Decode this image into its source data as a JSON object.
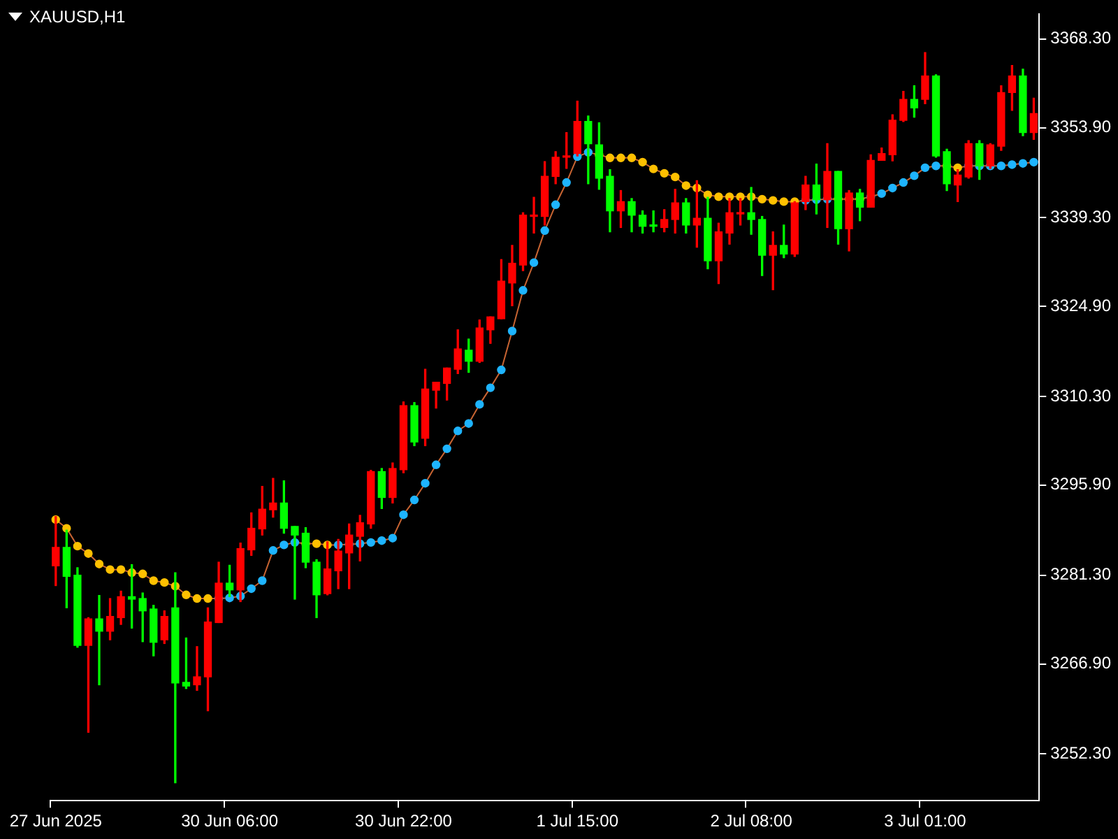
{
  "chart_data": {
    "type": "candlestick",
    "title": "XAUUSD,H1",
    "categories": [
      "27 Jun 2025",
      null,
      null,
      null,
      null,
      null,
      null,
      null,
      null,
      null,
      null,
      null,
      null,
      null,
      null,
      null,
      "30 Jun 06:00",
      null,
      null,
      null,
      null,
      null,
      null,
      null,
      null,
      null,
      null,
      null,
      null,
      null,
      null,
      null,
      "30 Jun 22:00",
      null,
      null,
      null,
      null,
      null,
      null,
      null,
      null,
      null,
      null,
      null,
      null,
      null,
      null,
      null,
      "1 Jul 15:00",
      null,
      null,
      null,
      null,
      null,
      null,
      null,
      null,
      null,
      null,
      null,
      null,
      null,
      null,
      null,
      "2 Jul 08:00",
      null,
      null,
      null,
      null,
      null,
      null,
      null,
      null,
      null,
      null,
      null,
      null,
      null,
      null,
      null,
      "3 Jul 01:00",
      null,
      null,
      null,
      null,
      null,
      null,
      null,
      null,
      null,
      null
    ],
    "ohlc": [
      [
        3282.8,
        3290.8,
        3279.6,
        3285.8
      ],
      [
        3285.8,
        3288.6,
        3276.0,
        3281.1
      ],
      [
        3281.3,
        3282.5,
        3269.6,
        3269.9
      ],
      [
        3269.9,
        3274.4,
        3255.8,
        3274.2
      ],
      [
        3274.2,
        3278.0,
        3263.5,
        3272.2
      ],
      [
        3272.2,
        3277.5,
        3270.8,
        3274.6
      ],
      [
        3274.4,
        3278.7,
        3273.3,
        3277.8
      ],
      [
        3277.8,
        3283.0,
        3272.7,
        3277.4
      ],
      [
        3277.5,
        3278.4,
        3270.5,
        3275.5
      ],
      [
        3275.8,
        3276.4,
        3268.2,
        3270.4
      ],
      [
        3270.8,
        3275.5,
        3270.2,
        3274.6
      ],
      [
        3276.0,
        3281.7,
        3247.6,
        3263.8
      ],
      [
        3263.9,
        3271.1,
        3262.9,
        3263.3
      ],
      [
        3263.5,
        3269.7,
        3262.6,
        3264.8
      ],
      [
        3264.8,
        3276.0,
        3259.3,
        3273.7
      ],
      [
        3273.6,
        3283.4,
        3273.6,
        3280.0
      ],
      [
        3280.0,
        3282.9,
        3277.8,
        3278.9
      ],
      [
        3278.9,
        3286.5,
        3277.0,
        3285.6
      ],
      [
        3285.4,
        3291.4,
        3284.5,
        3288.9
      ],
      [
        3288.8,
        3295.7,
        3287.8,
        3292.0
      ],
      [
        3291.9,
        3297.0,
        3290.7,
        3293.0
      ],
      [
        3293.0,
        3296.6,
        3288.1,
        3288.9
      ],
      [
        3289.2,
        3289.2,
        3277.4,
        3287.8
      ],
      [
        3288.1,
        3289.0,
        3282.5,
        3283.4
      ],
      [
        3283.4,
        3283.8,
        3274.4,
        3278.1
      ],
      [
        3278.3,
        3286.7,
        3278.1,
        3282.3
      ],
      [
        3282.0,
        3287.1,
        3279.1,
        3285.2
      ],
      [
        3284.9,
        3289.6,
        3279.1,
        3287.8
      ],
      [
        3287.6,
        3291.0,
        3283.6,
        3289.8
      ],
      [
        3289.6,
        3298.3,
        3288.9,
        3298.1
      ],
      [
        3298.1,
        3298.6,
        3292.1,
        3293.9
      ],
      [
        3293.9,
        3299.5,
        3293.0,
        3298.6
      ],
      [
        3298.4,
        3309.4,
        3297.9,
        3308.8
      ],
      [
        3308.8,
        3309.3,
        3302.3,
        3302.9
      ],
      [
        3303.5,
        3314.7,
        3302.3,
        3311.5
      ],
      [
        3311.3,
        3312.6,
        3308.4,
        3312.6
      ],
      [
        3312.4,
        3314.9,
        3309.7,
        3314.9
      ],
      [
        3314.7,
        3321.1,
        3314.0,
        3318.0
      ],
      [
        3317.8,
        3319.6,
        3314.2,
        3316.0
      ],
      [
        3316.0,
        3322.7,
        3315.8,
        3321.4
      ],
      [
        3321.1,
        3323.2,
        3318.9,
        3323.2
      ],
      [
        3322.9,
        3332.5,
        3322.9,
        3329.0
      ],
      [
        3328.7,
        3334.8,
        3325.0,
        3331.9
      ],
      [
        3331.6,
        3340.1,
        3330.7,
        3339.7
      ],
      [
        3339.5,
        3342.6,
        3336.8,
        3339.7
      ],
      [
        3339.5,
        3348.4,
        3338.1,
        3346.0
      ],
      [
        3346.0,
        3350.0,
        3344.8,
        3349.1
      ],
      [
        3349.1,
        3353.1,
        3347.3,
        3349.3
      ],
      [
        3349.7,
        3358.2,
        3349.3,
        3354.9
      ],
      [
        3354.9,
        3355.8,
        3344.8,
        3351.3
      ],
      [
        3351.1,
        3354.7,
        3343.9,
        3345.7
      ],
      [
        3346.0,
        3347.1,
        3337.0,
        3340.4
      ],
      [
        3340.4,
        3343.7,
        3337.7,
        3341.9
      ],
      [
        3341.9,
        3342.4,
        3337.0,
        3339.7
      ],
      [
        3339.7,
        3340.4,
        3336.8,
        3337.9
      ],
      [
        3338.1,
        3340.4,
        3337.0,
        3337.9
      ],
      [
        3337.7,
        3340.6,
        3337.0,
        3339.0
      ],
      [
        3339.0,
        3343.9,
        3336.8,
        3341.7
      ],
      [
        3341.7,
        3342.4,
        3336.8,
        3338.1
      ],
      [
        3338.1,
        3345.3,
        3334.5,
        3339.2
      ],
      [
        3339.2,
        3342.6,
        3331.0,
        3332.3
      ],
      [
        3332.3,
        3338.4,
        3328.6,
        3337.0
      ],
      [
        3336.8,
        3342.4,
        3335.0,
        3340.1
      ],
      [
        3339.9,
        3342.4,
        3338.1,
        3340.1
      ],
      [
        3340.1,
        3344.2,
        3336.6,
        3339.0
      ],
      [
        3339.0,
        3339.5,
        3329.9,
        3333.2
      ],
      [
        3333.2,
        3337.0,
        3327.6,
        3334.8
      ],
      [
        3334.8,
        3338.1,
        3332.8,
        3333.4
      ],
      [
        3333.4,
        3341.9,
        3333.0,
        3341.7
      ],
      [
        3341.9,
        3346.0,
        3340.6,
        3344.6
      ],
      [
        3344.6,
        3348.0,
        3339.9,
        3342.2
      ],
      [
        3342.2,
        3351.3,
        3337.7,
        3346.8
      ],
      [
        3346.8,
        3346.8,
        3335.0,
        3337.5
      ],
      [
        3337.5,
        3343.7,
        3333.9,
        3343.3
      ],
      [
        3343.3,
        3343.9,
        3338.8,
        3341.0
      ],
      [
        3341.0,
        3349.5,
        3341.0,
        3348.6
      ],
      [
        3348.6,
        3350.6,
        3348.6,
        3349.7
      ],
      [
        3349.5,
        3356.0,
        3348.5,
        3355.1
      ],
      [
        3355.1,
        3359.8,
        3354.9,
        3358.5
      ],
      [
        3358.5,
        3360.7,
        3355.6,
        3357.1
      ],
      [
        3358.5,
        3366.1,
        3357.8,
        3362.3
      ],
      [
        3362.3,
        3362.5,
        3349.1,
        3349.3
      ],
      [
        3350.0,
        3350.4,
        3343.7,
        3344.8
      ],
      [
        3344.6,
        3347.1,
        3341.9,
        3346.2
      ],
      [
        3345.9,
        3351.8,
        3345.7,
        3351.3
      ],
      [
        3351.3,
        3351.8,
        3345.5,
        3347.7
      ],
      [
        3347.7,
        3351.3,
        3347.3,
        3351.1
      ],
      [
        3350.9,
        3360.7,
        3350.2,
        3359.6
      ],
      [
        3359.6,
        3364.0,
        3356.7,
        3362.3
      ],
      [
        3362.3,
        3363.4,
        3352.6,
        3353.1
      ],
      [
        3353.1,
        3358.7,
        3352.0,
        3356.2
      ]
    ],
    "colors": [
      "#ff0000",
      "#00ff00",
      "#00ff00",
      "#ff0000",
      "#00ff00",
      "#ff0000",
      "#ff0000",
      "#00ff00",
      "#00ff00",
      "#00ff00",
      "#ff0000",
      "#00ff00",
      "#00ff00",
      "#ff0000",
      "#ff0000",
      "#ff0000",
      "#00ff00",
      "#ff0000",
      "#ff0000",
      "#ff0000",
      "#ff0000",
      "#00ff00",
      "#00ff00",
      "#00ff00",
      "#00ff00",
      "#ff0000",
      "#ff0000",
      "#ff0000",
      "#ff0000",
      "#ff0000",
      "#00ff00",
      "#ff0000",
      "#ff0000",
      "#00ff00",
      "#ff0000",
      "#ff0000",
      "#ff0000",
      "#ff0000",
      "#00ff00",
      "#ff0000",
      "#ff0000",
      "#ff0000",
      "#ff0000",
      "#ff0000",
      "#ff0000",
      "#ff0000",
      "#ff0000",
      "#ff0000",
      "#ff0000",
      "#00ff00",
      "#00ff00",
      "#00ff00",
      "#ff0000",
      "#00ff00",
      "#00ff00",
      "#00ff00",
      "#ff0000",
      "#ff0000",
      "#00ff00",
      "#ff0000",
      "#00ff00",
      "#ff0000",
      "#ff0000",
      "#ff0000",
      "#00ff00",
      "#00ff00",
      "#ff0000",
      "#00ff00",
      "#ff0000",
      "#ff0000",
      "#00ff00",
      "#ff0000",
      "#00ff00",
      "#ff0000",
      "#00ff00",
      "#ff0000",
      "#ff0000",
      "#ff0000",
      "#ff0000",
      "#00ff00",
      "#ff0000",
      "#00ff00",
      "#00ff00",
      "#ff0000",
      "#ff0000",
      "#00ff00",
      "#ff0000",
      "#ff0000",
      "#ff0000",
      "#00ff00",
      "#ff0000"
    ],
    "series": [
      {
        "type": "line",
        "color": "#c86432",
        "marker": "circle",
        "colors": [
          "#ffc000",
          "#ffc000",
          "#ffc000",
          "#ffc000",
          "#ffc000",
          "#ffc000",
          "#ffc000",
          "#ffc000",
          "#ffc000",
          "#ffc000",
          "#ffc000",
          "#ffc000",
          "#ffc000",
          "#ffc000",
          "#ffc000",
          "#1eb4ff",
          "#1eb4ff",
          "#1eb4ff",
          "#1eb4ff",
          "#1eb4ff",
          "#1eb4ff",
          "#1eb4ff",
          "#1eb4ff",
          "#ffc000",
          "#ffc000",
          "#ffc000",
          "#1eb4ff",
          "#1eb4ff",
          "#1eb4ff",
          "#1eb4ff",
          "#1eb4ff",
          "#1eb4ff",
          "#1eb4ff",
          "#1eb4ff",
          "#1eb4ff",
          "#1eb4ff",
          "#1eb4ff",
          "#1eb4ff",
          "#1eb4ff",
          "#1eb4ff",
          "#1eb4ff",
          "#1eb4ff",
          "#1eb4ff",
          "#1eb4ff",
          "#1eb4ff",
          "#1eb4ff",
          "#1eb4ff",
          "#1eb4ff",
          "#1eb4ff",
          "#1eb4ff",
          "#ffc000",
          "#ffc000",
          "#ffc000",
          "#ffc000",
          "#ffc000",
          "#ffc000",
          "#ffc000",
          "#ffc000",
          "#ffc000",
          "#ffc000",
          "#ffc000",
          "#ffc000",
          "#ffc000",
          "#ffc000",
          "#ffc000",
          "#ffc000",
          "#ffc000",
          "#ffc000",
          "#ffc000",
          "#1eb4ff",
          "#1eb4ff",
          "#1eb4ff",
          "#ffc000",
          "#ffc000",
          "#ffc000",
          "#1eb4ff",
          "#1eb4ff",
          "#1eb4ff",
          "#1eb4ff",
          "#1eb4ff",
          "#1eb4ff",
          "#1eb4ff",
          "#ffc000",
          "#ffc000",
          "#1eb4ff",
          "#1eb4ff",
          "#1eb4ff",
          "#1eb4ff",
          "#1eb4ff",
          "#1eb4ff",
          "#1eb4ff"
        ],
        "values": [
          3290.3,
          3288.9,
          3286.0,
          3284.8,
          3283.1,
          3282.2,
          3282.2,
          3281.7,
          3281.5,
          3280.4,
          3280.1,
          3279.5,
          3278.1,
          3277.5,
          3277.5,
          3277.5,
          3277.6,
          3277.9,
          3279.1,
          3280.4,
          3285.3,
          3286.2,
          3286.6,
          3286.4,
          3286.4,
          3286.2,
          3286.2,
          3286.3,
          3286.4,
          3286.6,
          3286.9,
          3287.3,
          3291.1,
          3293.5,
          3296.2,
          3299.2,
          3301.8,
          3304.7,
          3305.9,
          3309.0,
          3311.7,
          3314.6,
          3320.9,
          3327.5,
          3332.0,
          3337.2,
          3341.4,
          3345.0,
          3349.2,
          3349.9,
          3349.5,
          3349.0,
          3349.0,
          3349.0,
          3348.3,
          3347.2,
          3346.5,
          3345.9,
          3344.5,
          3344.1,
          3343.0,
          3342.7,
          3342.7,
          3342.7,
          3342.7,
          3342.3,
          3342.1,
          3341.9,
          3341.9,
          3342.1,
          3342.2,
          3342.3,
          3342.3,
          3342.3,
          3342.3,
          3342.7,
          3343.2,
          3344.1,
          3345.0,
          3346.1,
          3347.4,
          3347.7,
          3347.7,
          3347.4,
          3347.7,
          3347.7,
          3347.7,
          3347.7,
          3347.9,
          3348.1,
          3348.3
        ]
      }
    ],
    "ylim": [
      3244.7,
      3372.3
    ],
    "yticks": [
      {
        "value": 3252.3,
        "label": "3252.30"
      },
      {
        "value": 3266.9,
        "label": "3266.90"
      },
      {
        "value": 3281.3,
        "label": "3281.30"
      },
      {
        "value": 3295.9,
        "label": "3295.90"
      },
      {
        "value": 3310.3,
        "label": "3310.30"
      },
      {
        "value": 3324.9,
        "label": "3324.90"
      },
      {
        "value": 3339.3,
        "label": "3339.30"
      },
      {
        "value": 3353.9,
        "label": "3353.90"
      },
      {
        "value": 3368.3,
        "label": "3368.30"
      }
    ]
  }
}
